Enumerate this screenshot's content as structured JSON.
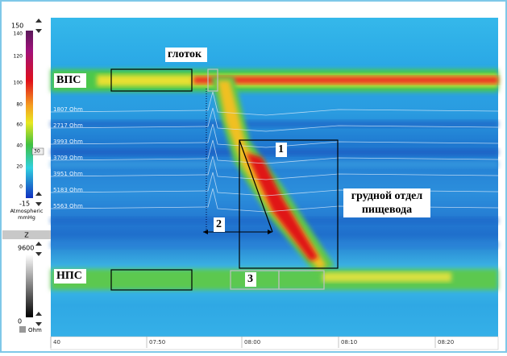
{
  "pressure_scale": {
    "max": "150",
    "ticks": [
      "140",
      "120",
      "100",
      "80",
      "60",
      "40",
      "20",
      "0"
    ],
    "min": "-15",
    "marker": "30",
    "units": [
      "Atmospheric",
      "mmHg"
    ]
  },
  "z_label": "Z",
  "impedance_scale": {
    "max": "9600",
    "min": "0",
    "unit": "Ohm"
  },
  "impedance_channels": [
    "1807 Ohm",
    "2717 Ohm",
    "3993 Ohm",
    "3709 Ohm",
    "3951 Ohm",
    "5183 Ohm",
    "5563 Ohm"
  ],
  "annotations": {
    "upper_sphincter": "ВПС",
    "lower_sphincter": "НПС",
    "pharynx": "глоток",
    "box_1": "1",
    "arrow_2": "2",
    "box_3": "3",
    "thoracic": [
      "грудной отдел",
      "пищевода"
    ]
  },
  "time_axis": [
    "40",
    "07:50",
    "08:00",
    "08:10",
    "08:20"
  ]
}
